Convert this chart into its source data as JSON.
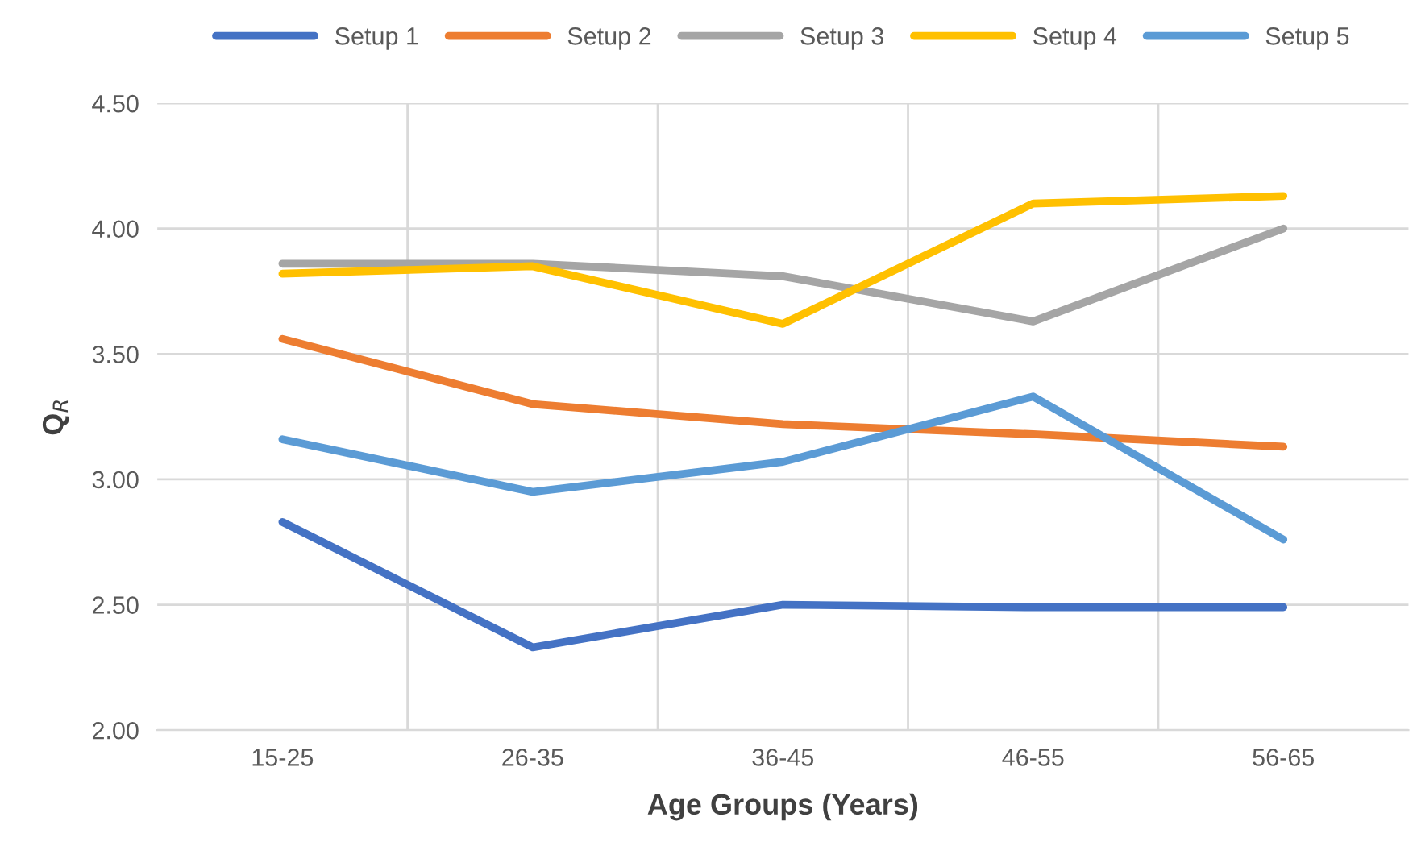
{
  "chart_data": {
    "type": "line",
    "xlabel": "Age Groups (Years)",
    "ylabel": "Q$_{R}$",
    "categories": [
      "15-25",
      "26-35",
      "36-45",
      "46-55",
      "56-65"
    ],
    "series": [
      {
        "name": "Setup 1",
        "color": "#4472c4",
        "values": [
          2.83,
          2.33,
          2.5,
          2.49,
          2.49
        ]
      },
      {
        "name": "Setup 2",
        "color": "#ed7d31",
        "values": [
          3.56,
          3.3,
          3.22,
          3.18,
          3.13
        ]
      },
      {
        "name": "Setup 3",
        "color": "#a5a5a5",
        "values": [
          3.86,
          3.86,
          3.81,
          3.63,
          4.0
        ]
      },
      {
        "name": "Setup 4",
        "color": "#ffc000",
        "values": [
          3.82,
          3.85,
          3.62,
          4.1,
          4.13
        ]
      },
      {
        "name": "Setup 5",
        "color": "#5b9bd5",
        "values": [
          3.16,
          2.95,
          3.07,
          3.33,
          2.76
        ]
      }
    ],
    "ylim": [
      2.0,
      4.5
    ],
    "yticks": [
      {
        "value": 2.0,
        "label": "2.00"
      },
      {
        "value": 2.5,
        "label": "2.50"
      },
      {
        "value": 3.0,
        "label": "3.00"
      },
      {
        "value": 3.5,
        "label": "3.50"
      },
      {
        "value": 4.0,
        "label": "4.00"
      },
      {
        "value": 4.5,
        "label": "4.50"
      }
    ],
    "grid": true,
    "legend": "top",
    "marker": "none",
    "line_style": "solid"
  }
}
